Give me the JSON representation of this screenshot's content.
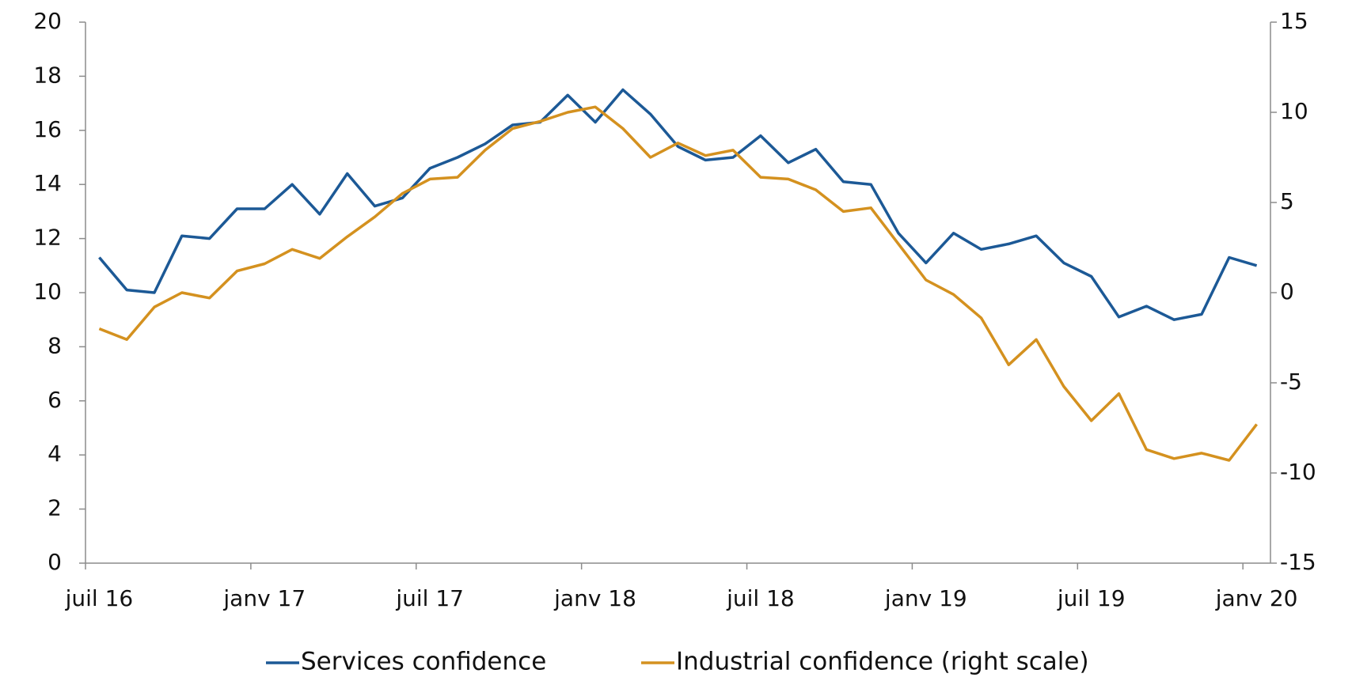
{
  "chart_data": {
    "type": "line",
    "categories": [
      "juil 16",
      null,
      null,
      null,
      null,
      null,
      "janv 17",
      null,
      null,
      null,
      null,
      null,
      "juil 17",
      null,
      null,
      null,
      null,
      null,
      "janv 18",
      null,
      null,
      null,
      null,
      null,
      "juil 18",
      null,
      null,
      null,
      null,
      null,
      "janv 19",
      null,
      null,
      null,
      null,
      null,
      "juil 19",
      null,
      null,
      null,
      null,
      null,
      "janv 20"
    ],
    "series": [
      {
        "name": "Services confidence",
        "color": "#1c5996",
        "values": [
          11.3,
          10.1,
          10.0,
          12.1,
          12.0,
          13.1,
          13.1,
          14.0,
          12.9,
          14.4,
          13.2,
          13.5,
          14.6,
          15.0,
          15.5,
          16.2,
          16.3,
          17.3,
          16.3,
          17.5,
          16.6,
          15.4,
          14.9,
          15.0,
          15.8,
          14.8,
          15.3,
          14.1,
          14.0,
          12.2,
          11.1,
          12.2,
          11.6,
          11.8,
          12.1,
          11.1,
          10.6,
          9.1,
          9.5,
          9.0,
          9.2,
          11.3,
          11.0
        ]
      },
      {
        "name": "Industrial confidence (right scale)",
        "color": "#d4911f",
        "axis": "y2",
        "values": [
          -2.0,
          -2.6,
          -0.8,
          0.0,
          -0.3,
          1.2,
          1.6,
          2.4,
          1.9,
          3.1,
          4.2,
          5.5,
          6.3,
          6.4,
          7.9,
          9.1,
          9.5,
          10.0,
          10.3,
          9.1,
          7.5,
          8.3,
          7.6,
          7.9,
          6.4,
          6.3,
          5.7,
          4.5,
          4.7,
          2.7,
          0.7,
          -0.1,
          -1.4,
          -4.0,
          -2.6,
          -5.2,
          -7.1,
          -5.6,
          -8.7,
          -9.2,
          -8.9,
          -9.3,
          -7.3
        ]
      }
    ],
    "ylim": [
      0,
      20
    ],
    "yticks": [
      0,
      2,
      4,
      6,
      8,
      10,
      12,
      14,
      16,
      18,
      20
    ],
    "y2lim": [
      -15,
      15
    ],
    "y2ticks": [
      -15,
      -10,
      -5,
      0,
      5,
      10,
      15
    ],
    "grid": false,
    "legend": "bottom"
  }
}
